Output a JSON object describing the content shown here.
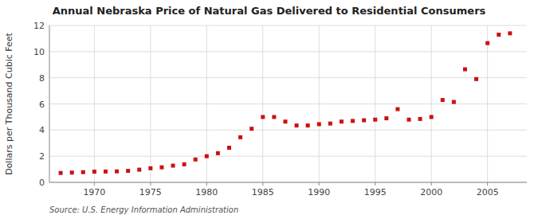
{
  "chart_data": {
    "type": "scatter",
    "title": "Annual Nebraska Price of Natural Gas Delivered to Residential Consumers",
    "ylabel": "Dollars per Thousand Cubic Feet",
    "annotation": "Source: U.S. Energy Information Administration",
    "x": [
      1967,
      1968,
      1969,
      1970,
      1971,
      1972,
      1973,
      1974,
      1975,
      1976,
      1977,
      1978,
      1979,
      1980,
      1981,
      1982,
      1983,
      1984,
      1985,
      1986,
      1987,
      1988,
      1989,
      1990,
      1991,
      1992,
      1993,
      1994,
      1995,
      1996,
      1997,
      1998,
      1999,
      2000,
      2001,
      2002,
      2003,
      2004,
      2005,
      2006,
      2007
    ],
    "values": [
      0.72,
      0.75,
      0.78,
      0.82,
      0.83,
      0.84,
      0.88,
      0.97,
      1.08,
      1.15,
      1.28,
      1.38,
      1.75,
      2.0,
      2.23,
      2.65,
      3.45,
      4.1,
      5.0,
      5.0,
      4.65,
      4.35,
      4.35,
      4.45,
      4.5,
      4.65,
      4.7,
      4.75,
      4.8,
      4.9,
      5.6,
      4.8,
      4.85,
      5.0,
      6.3,
      6.15,
      8.65,
      7.9,
      10.65,
      11.3,
      11.4
    ],
    "color": "#cc1111",
    "marker": "square",
    "ylim": [
      0,
      12
    ],
    "yticks": [
      0,
      2,
      4,
      6,
      8,
      10,
      12
    ],
    "xlim": [
      1966,
      2008.5
    ],
    "xticks": [
      1970,
      1975,
      1980,
      1985,
      1990,
      1995,
      2000,
      2005
    ],
    "grid": true
  }
}
